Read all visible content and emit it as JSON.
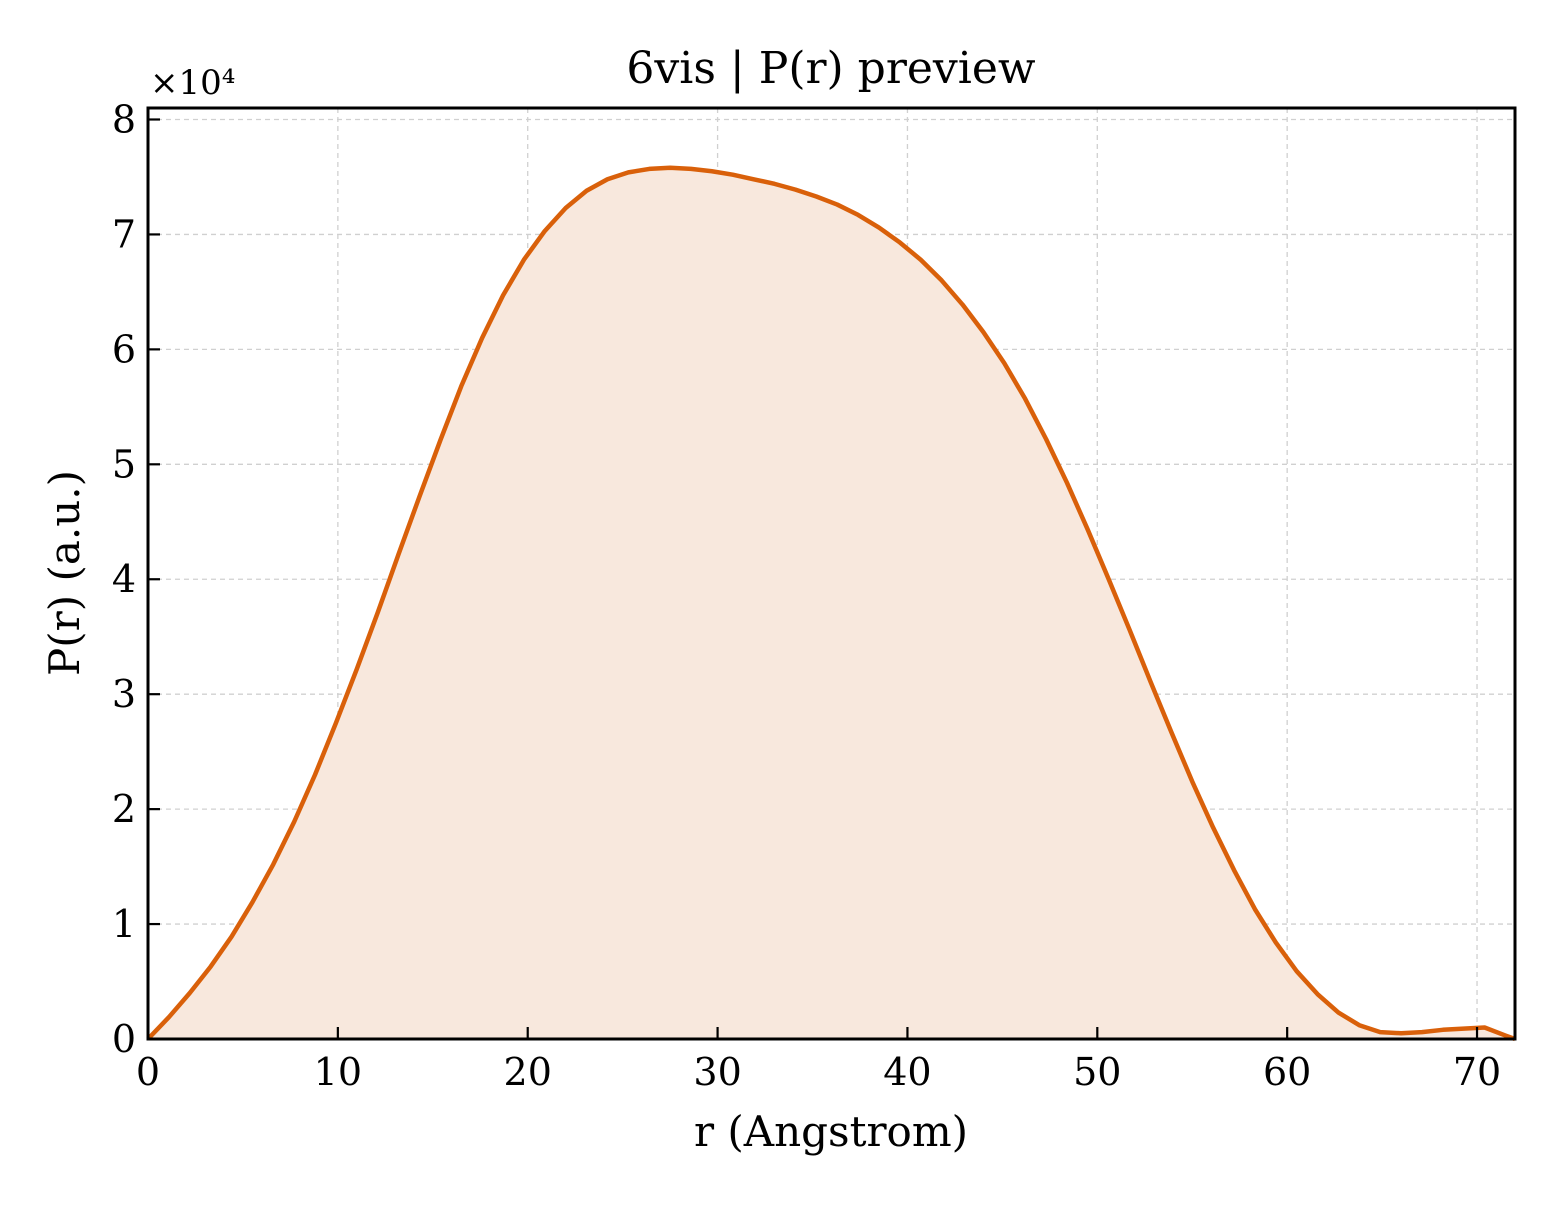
{
  "chart_data": {
    "type": "area",
    "title": "6vis | P(r) preview",
    "xlabel": "r (Angstrom)",
    "ylabel": "P(r) (a.u.)",
    "y_multiplier": "×10⁴",
    "xlim": [
      0,
      72
    ],
    "ylim": [
      0,
      81000
    ],
    "x_ticks": [
      0,
      10,
      20,
      30,
      40,
      50,
      60,
      70
    ],
    "y_ticks": [
      0,
      10000,
      20000,
      30000,
      40000,
      50000,
      60000,
      70000,
      80000
    ],
    "x_tick_labels": [
      "0",
      "10",
      "20",
      "30",
      "40",
      "50",
      "60",
      "70"
    ],
    "y_tick_labels": [
      "0",
      "1",
      "2",
      "3",
      "4",
      "5",
      "6",
      "7",
      "8"
    ],
    "grid": true,
    "colors": {
      "line": "#d9600a",
      "fill": "#f8e8dd"
    },
    "series": [
      {
        "x": [
          0,
          1.1,
          2.2,
          3.3,
          4.4,
          5.5,
          6.6,
          7.7,
          8.8,
          9.9,
          11.0,
          12.1,
          13.2,
          14.3,
          15.4,
          16.5,
          17.6,
          18.7,
          19.8,
          20.9,
          22.0,
          23.1,
          24.2,
          25.3,
          26.4,
          27.5,
          28.6,
          29.7,
          30.8,
          31.9,
          33.0,
          34.1,
          35.2,
          36.3,
          37.4,
          38.5,
          39.6,
          40.7,
          41.8,
          42.9,
          44.0,
          45.1,
          46.2,
          47.3,
          48.4,
          49.5,
          50.6,
          51.7,
          52.8,
          53.9,
          55.0,
          56.1,
          57.2,
          58.3,
          59.4,
          60.5,
          61.6,
          62.7,
          63.8,
          64.9,
          66.0,
          67.1,
          68.2,
          69.3,
          70.4,
          71.5,
          72.0
        ],
        "y": [
          0,
          1900,
          4000,
          6300,
          8900,
          11900,
          15200,
          18900,
          23000,
          27500,
          32200,
          37100,
          42200,
          47200,
          52100,
          56800,
          61000,
          64700,
          67800,
          70300,
          72300,
          73800,
          74800,
          75400,
          75700,
          75800,
          75700,
          75500,
          75200,
          74800,
          74400,
          73900,
          73300,
          72600,
          71700,
          70600,
          69300,
          67800,
          66000,
          63900,
          61500,
          58800,
          55700,
          52200,
          48400,
          44300,
          40000,
          35600,
          31100,
          26700,
          22400,
          18400,
          14700,
          11300,
          8400,
          5900,
          3900,
          2300,
          1200,
          600,
          500,
          600,
          800,
          900,
          1000,
          300,
          0
        ]
      }
    ]
  }
}
